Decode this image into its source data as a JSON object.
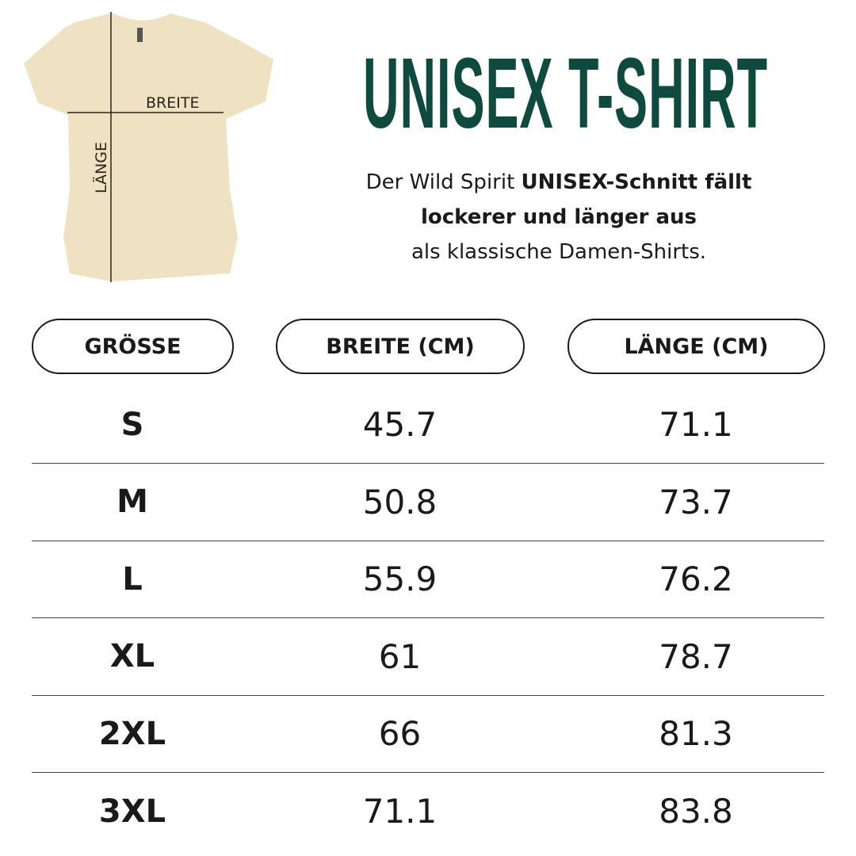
{
  "title": "UNISEX T-SHIRT",
  "description": {
    "part1": "Der Wild Spirit ",
    "bold": "UNISEX-Schnitt fällt lockerer und länger aus",
    "part2": "als klassische Damen-Shirts."
  },
  "illustration": {
    "width_label": "BREITE",
    "length_label": "LÄNGE",
    "shirt_color": "#efe2c3"
  },
  "accent_color": "#0e4a3d",
  "table": {
    "headers": [
      "GRÖSSE",
      "BREITE (CM)",
      "LÄNGE (CM)"
    ],
    "rows": [
      [
        "S",
        "45.7",
        "71.1"
      ],
      [
        "M",
        "50.8",
        "73.7"
      ],
      [
        "L",
        "55.9",
        "76.2"
      ],
      [
        "XL",
        "61",
        "78.7"
      ],
      [
        "2XL",
        "66",
        "81.3"
      ],
      [
        "3XL",
        "71.1",
        "83.8"
      ]
    ]
  }
}
